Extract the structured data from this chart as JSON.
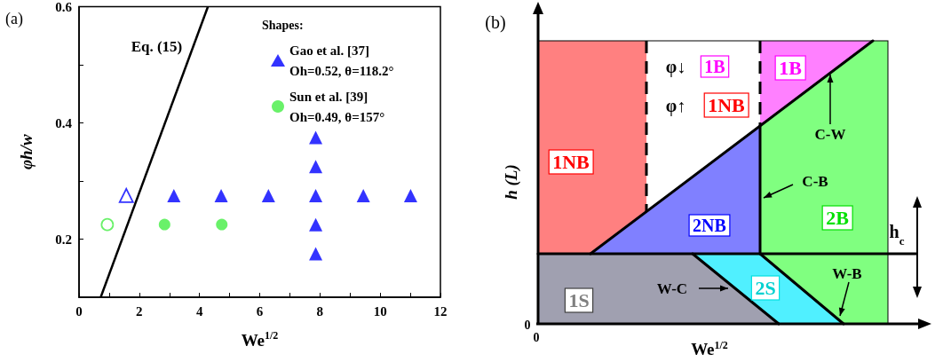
{
  "chart_data": [
    {
      "type": "scatter",
      "annotations": [
        "(a)"
      ],
      "xlabel": "We$^{1/2}$",
      "ylabel": "φh/w",
      "legend_title": "Shapes:",
      "legend": "top right",
      "grid": false,
      "xlim": [
        0,
        12
      ],
      "xticks": [
        0,
        {
          "value": 1,
          "label": null
        },
        2,
        {
          "value": 3,
          "label": null
        },
        4,
        {
          "value": 5,
          "label": null
        },
        6,
        {
          "value": 7,
          "label": null
        },
        8,
        {
          "value": 9,
          "label": null
        },
        10,
        {
          "value": 11,
          "label": null
        },
        12
      ],
      "ylim": [
        0.1,
        0.6
      ],
      "yticks": [
        0.2,
        {
          "value": 0.3,
          "label": null
        },
        0.4,
        {
          "value": 0.5,
          "label": null
        },
        0.6
      ],
      "series": [
        {
          "type": "line",
          "name": "Eq. (15)",
          "color": "#000000",
          "marker": "none",
          "x": [
            0.72,
            4.28
          ],
          "values": [
            0.1,
            0.6
          ]
        },
        {
          "name": "Gao et al. [37]\nOh=0.52, θ=118.2°",
          "color": "#0000ff",
          "marker": "triangle",
          "x": [
            3.15,
            4.72,
            6.29,
            7.86,
            9.44,
            11.01,
            7.86,
            7.86,
            7.86,
            7.86
          ],
          "values": [
            0.275,
            0.275,
            0.275,
            0.275,
            0.275,
            0.275,
            0.375,
            0.325,
            0.225,
            0.175
          ]
        },
        {
          "color": "#0000ff",
          "marker": "triangle",
          "x": [
            1.57
          ],
          "values": [
            0.275
          ]
        },
        {
          "name": "Sun et al. [39]\nOh=0.49, θ=157°",
          "color": "#44ee44",
          "marker": "circle",
          "x": [
            2.84,
            4.74
          ],
          "values": [
            0.225,
            0.225
          ]
        },
        {
          "color": "#44ee44",
          "marker": "circle",
          "x": [
            0.94
          ],
          "values": [
            0.225
          ]
        }
      ]
    },
    {
      "type": "other",
      "xlabel": "We$^{1/2}$",
      "ylabel": "h (L)",
      "annotations": [
        "(b)",
        "0",
        "0",
        "1NB",
        "φ↓",
        "1B",
        "φ↑",
        "1NB",
        "1B",
        "C-W",
        "C-B",
        "2NB",
        "2B",
        "h$_{c}$",
        "1S",
        "W-C",
        "2S",
        "W-B"
      ]
    }
  ]
}
